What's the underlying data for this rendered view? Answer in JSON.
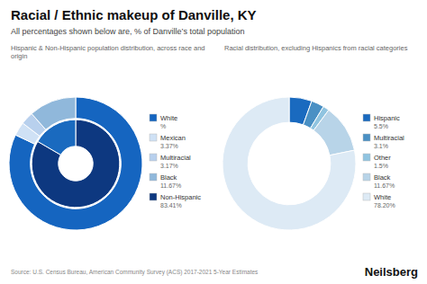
{
  "title": "Racial / Ethnic makeup of Danville, KY",
  "subtitle": "All percentages shown below are, % of Danville’s total population",
  "annotations": [
    "Source: U.S. Census Bureau, American Community Survey (ACS) 2017-2021 5-Year Estimates",
    "Neilsberg"
  ],
  "chart_data": [
    {
      "type": "donut",
      "title": "Hispanic & Non-Hispanic population distribution, across race and origin",
      "legend": "right",
      "series": [
        {
          "categories": [
            "White",
            "Mexican",
            "Multiracial",
            "Black"
          ],
          "values": [
            83.41,
            3.37,
            3.17,
            11.67
          ],
          "value_labels": [
            "%",
            "3.37%",
            "3.17%",
            "11.67%"
          ],
          "colors": [
            "#1565c0",
            "#cfe1f5",
            "#b8d0ed",
            "#90b8db"
          ]
        },
        {
          "categories": [
            "Non-Hispanic",
            null
          ],
          "values": [
            83.41,
            16.59
          ],
          "value_labels": [
            "83.41%",
            null
          ],
          "colors": [
            "#0d3880",
            "#1a6abf"
          ]
        }
      ]
    },
    {
      "type": "donut",
      "title": "Racial distribution, excluding Hispanics from racial categories",
      "legend": "right",
      "series": [
        {
          "categories": [
            "Hispanic",
            "Multiracial",
            "Other",
            "Black",
            "White"
          ],
          "values": [
            5.5,
            3.1,
            1.5,
            11.67,
            78.2
          ],
          "value_labels": [
            "5.5%",
            "3.1%",
            "1.5%",
            "11.67%",
            "78.20%"
          ],
          "colors": [
            "#1a6abf",
            "#4a90c4",
            "#90c4e0",
            "#b8d4e8",
            "#ddeaf5"
          ]
        }
      ]
    }
  ]
}
